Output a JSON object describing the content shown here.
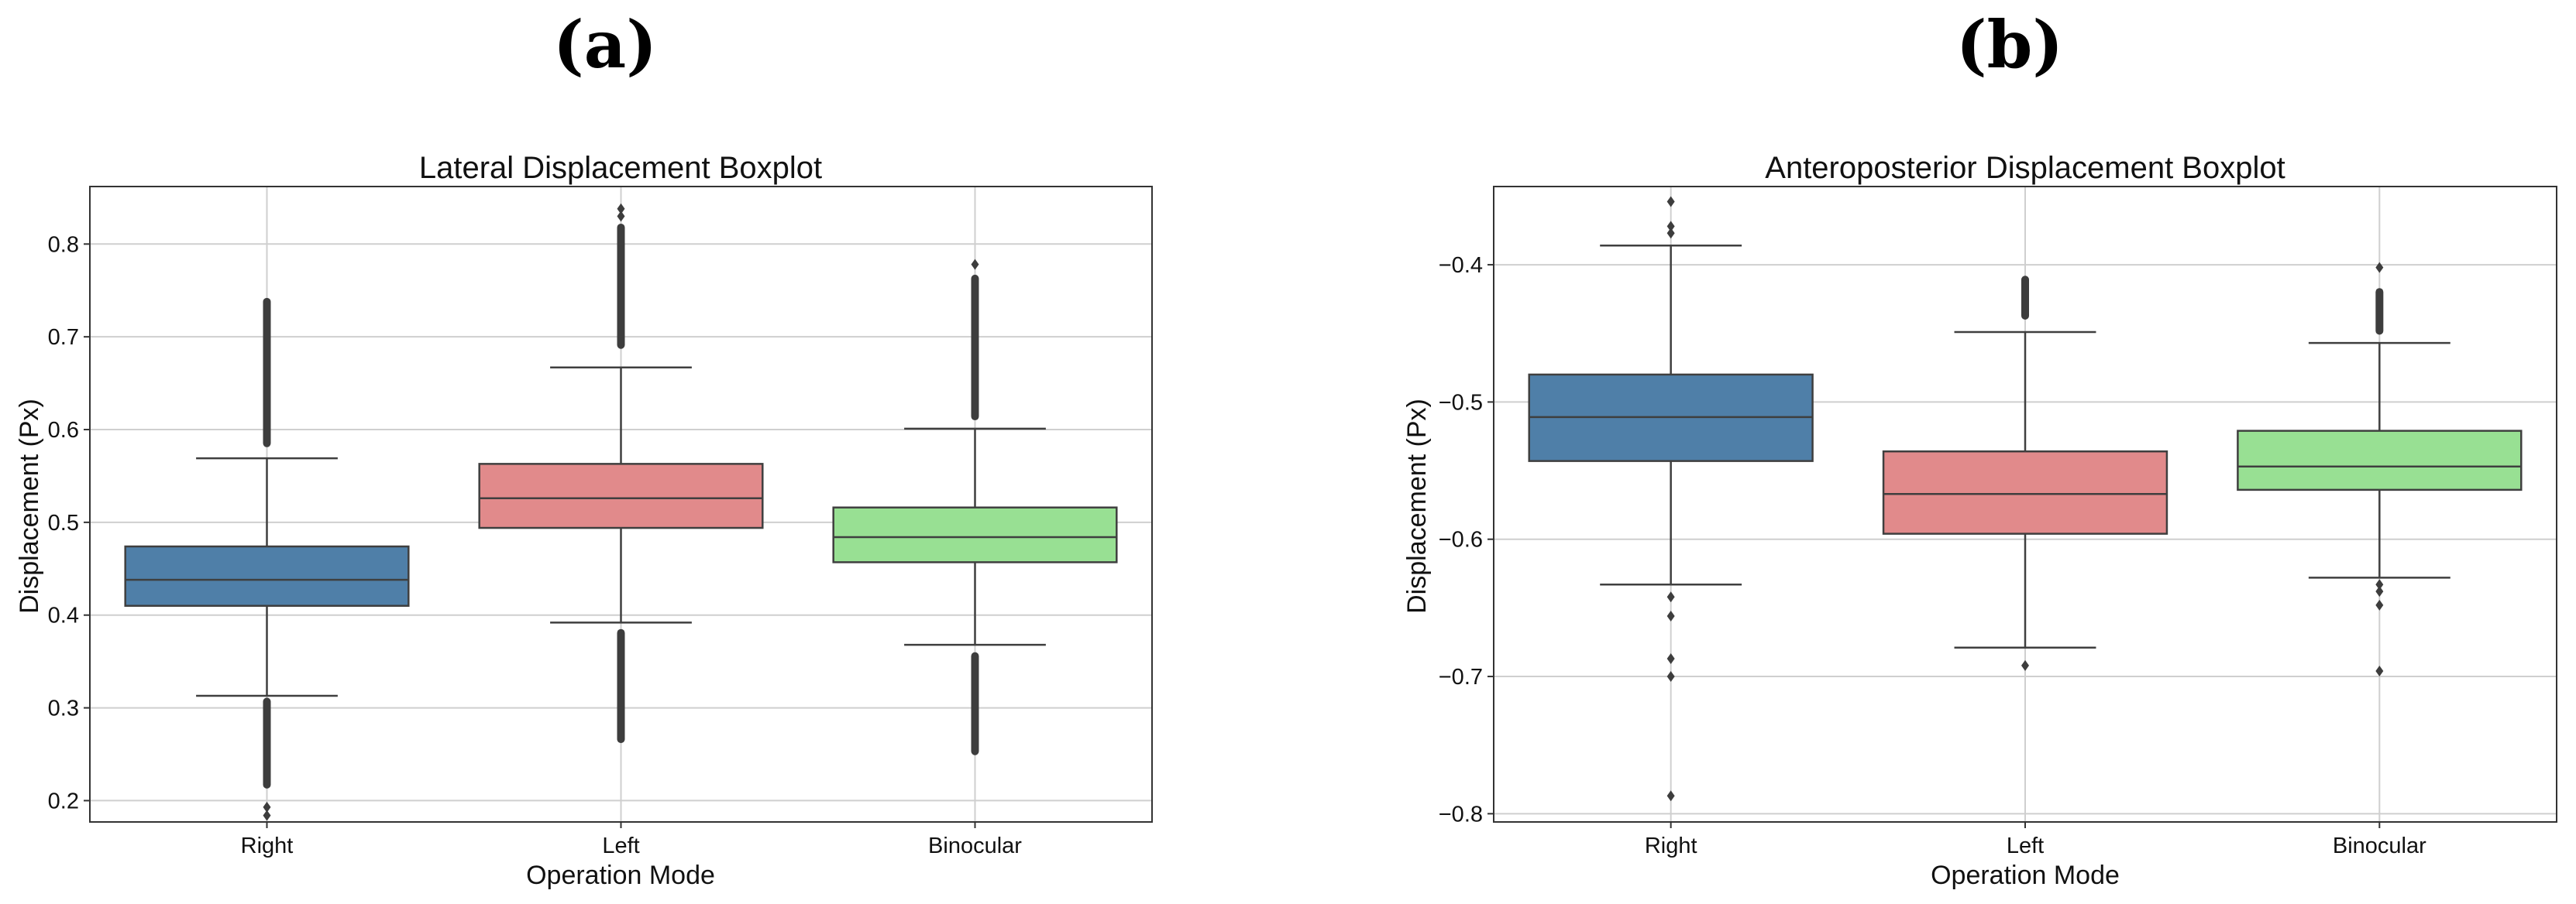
{
  "panel_labels": [
    "(a)",
    "(b)"
  ],
  "chart_data": [
    {
      "type": "box",
      "title": "Lateral Displacement Boxplot",
      "xlabel": "Operation Mode",
      "ylabel": "Displacement (Px)",
      "categories": [
        "Right",
        "Left",
        "Binocular"
      ],
      "colors": [
        "#4f7fa8",
        "#e18a8b",
        "#98e093"
      ],
      "ylim": [
        0.177,
        0.862
      ],
      "yticks": [
        0.2,
        0.3,
        0.4,
        0.5,
        0.6,
        0.7,
        0.8
      ],
      "ytick_labels": [
        "0.2",
        "0.3",
        "0.4",
        "0.5",
        "0.6",
        "0.7",
        "0.8"
      ],
      "grid": true,
      "boxes": [
        {
          "q1": 0.41,
          "median": 0.438,
          "q3": 0.474,
          "whisker_low": 0.313,
          "whisker_high": 0.569,
          "outlier_ranges": [
            [
              0.213,
              0.311
            ],
            [
              0.581,
              0.742
            ]
          ],
          "outliers": [
            0.193,
            0.184
          ]
        },
        {
          "q1": 0.494,
          "median": 0.526,
          "q3": 0.563,
          "whisker_low": 0.392,
          "whisker_high": 0.667,
          "outlier_ranges": [
            [
              0.262,
              0.385
            ],
            [
              0.687,
              0.822
            ]
          ],
          "outliers": [
            0.838,
            0.83
          ]
        },
        {
          "q1": 0.457,
          "median": 0.484,
          "q3": 0.516,
          "whisker_low": 0.368,
          "whisker_high": 0.601,
          "outlier_ranges": [
            [
              0.249,
              0.36
            ],
            [
              0.61,
              0.767
            ]
          ],
          "outliers": [
            0.778
          ]
        }
      ]
    },
    {
      "type": "box",
      "title": "Anteroposterior Displacement Boxplot",
      "xlabel": "Operation Mode",
      "ylabel": "Displacement (Px)",
      "categories": [
        "Right",
        "Left",
        "Binocular"
      ],
      "colors": [
        "#4f7fa8",
        "#e18a8b",
        "#98e093"
      ],
      "ylim": [
        -0.806,
        -0.343
      ],
      "yticks": [
        -0.8,
        -0.7,
        -0.6,
        -0.5,
        -0.4
      ],
      "ytick_labels": [
        "−0.8",
        "−0.7",
        "−0.6",
        "−0.5",
        "−0.4"
      ],
      "grid": true,
      "boxes": [
        {
          "q1": -0.543,
          "median": -0.511,
          "q3": -0.48,
          "whisker_low": -0.633,
          "whisker_high": -0.386,
          "outlier_ranges": [],
          "outliers": [
            -0.354,
            -0.372,
            -0.377,
            -0.642,
            -0.656,
            -0.687,
            -0.7,
            -0.787
          ]
        },
        {
          "q1": -0.596,
          "median": -0.567,
          "q3": -0.536,
          "whisker_low": -0.679,
          "whisker_high": -0.449,
          "outlier_ranges": [
            [
              -0.44,
              -0.408
            ]
          ],
          "outliers": [
            -0.692
          ]
        },
        {
          "q1": -0.564,
          "median": -0.547,
          "q3": -0.521,
          "whisker_low": -0.628,
          "whisker_high": -0.457,
          "outlier_ranges": [
            [
              -0.451,
              -0.417
            ]
          ],
          "outliers": [
            -0.402,
            -0.633,
            -0.638,
            -0.648,
            -0.696
          ]
        }
      ]
    }
  ]
}
